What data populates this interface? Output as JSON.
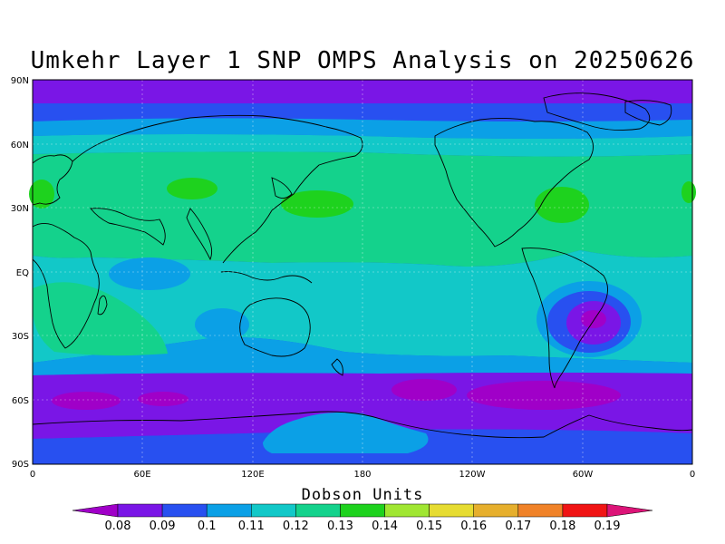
{
  "title": "Umkehr Layer 1 SNP OMPS Analysis on 20250626",
  "lat_ticks": [
    "90N",
    "60N",
    "30N",
    "EQ",
    "30S",
    "60S",
    "90S"
  ],
  "lon_ticks": [
    "0",
    "60E",
    "120E",
    "180",
    "120W",
    "60W",
    "0"
  ],
  "colorbar": {
    "units_label": "Dobson Units",
    "labels": [
      "0.08",
      "0.09",
      "0.1",
      "0.11",
      "0.12",
      "0.13",
      "0.14",
      "0.15",
      "0.16",
      "0.17",
      "0.18",
      "0.19"
    ],
    "colors": [
      "#a000c8",
      "#7a16e6",
      "#2850f0",
      "#0ba0e6",
      "#12c8c8",
      "#14d28c",
      "#1ed21e",
      "#a0e632",
      "#e6dc32",
      "#e6af2d",
      "#f08228",
      "#f01414",
      "#dc1478"
    ]
  },
  "colors": {
    "band_polar": "#7a16e6",
    "band_high": "#2850f0",
    "band_mid": "#0ba0e6",
    "band_sub": "#12c8c8",
    "band_green": "#14d28c",
    "blob": "#1ed21e",
    "low_purple": "#a000c8",
    "antarctic": "#0ba0e6"
  }
}
